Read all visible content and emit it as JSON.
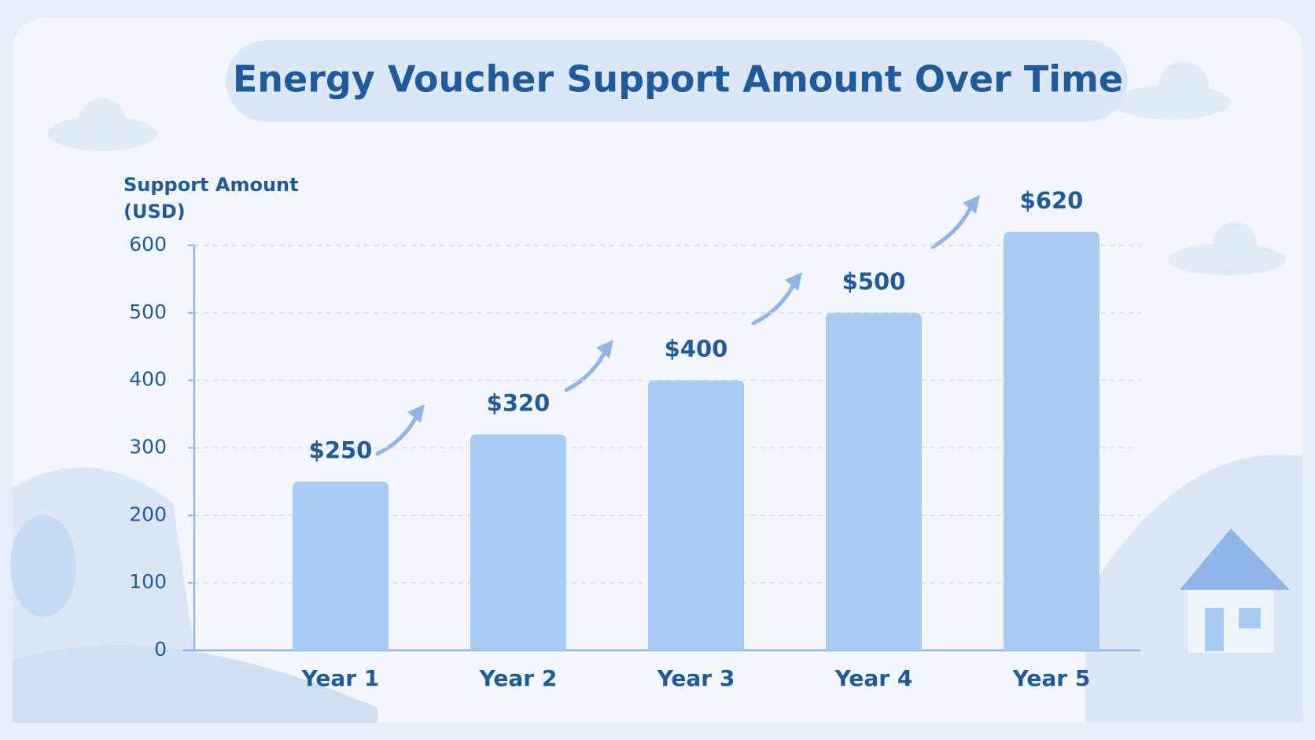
{
  "chart_data": {
    "type": "bar",
    "title": "Energy Voucher Support Amount Over Time",
    "y_label": "Support Amount (USD)",
    "categories": [
      "Year 1",
      "Year 2",
      "Year 3",
      "Year 4",
      "Year 5"
    ],
    "values": [
      250,
      320,
      400,
      500,
      620
    ],
    "value_labels": [
      "$250",
      "$320",
      "$400",
      "$500",
      "$620"
    ],
    "color": "#a8cbf5",
    "ylim": [
      0,
      600
    ],
    "yticks": [
      0,
      100,
      200,
      300,
      400,
      500,
      600
    ],
    "grid": true
  }
}
